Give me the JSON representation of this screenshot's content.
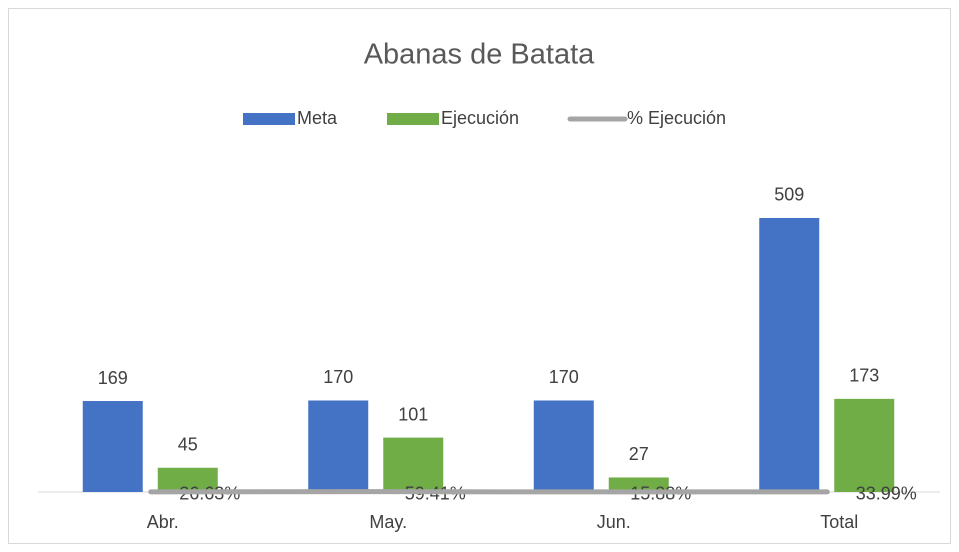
{
  "chart_data": {
    "type": "bar",
    "title": "Abanas de Batata",
    "categories": [
      "Abr.",
      "May.",
      "Jun.",
      "Total"
    ],
    "series": [
      {
        "name": "Meta",
        "type": "bar",
        "color": "#4472c4",
        "values": [
          169,
          170,
          170,
          509
        ]
      },
      {
        "name": "Ejecución",
        "type": "bar",
        "color": "#70ad47",
        "values": [
          45,
          101,
          27,
          173
        ]
      },
      {
        "name": "% Ejecución",
        "type": "line",
        "color": "#a5a5a5",
        "values": [
          0.2663,
          0.5941,
          0.1588,
          0.3399
        ],
        "value_labels": [
          "26.63%",
          "59.41%",
          "15.88%",
          "33.99%"
        ]
      }
    ],
    "ylim": [
      0,
      600
    ],
    "legend": "top"
  }
}
